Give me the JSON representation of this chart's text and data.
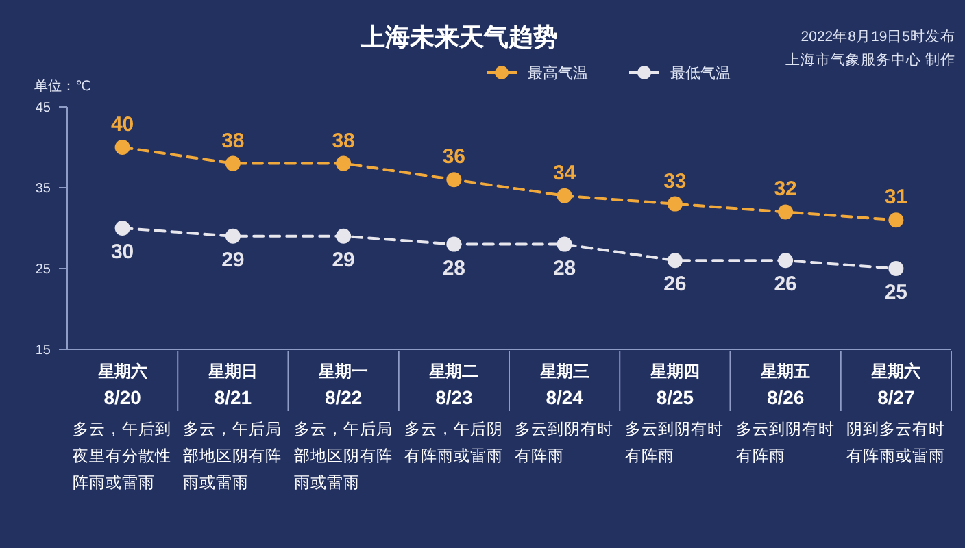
{
  "chart_data": {
    "type": "line",
    "title": "上海未来天气趋势",
    "ylabel": "单位：℃",
    "annotations": [
      "2022年8月19日5时发布",
      "上海市气象服务中心 制作",
      "多云，午后到夜里有分散性阵雨或雷雨",
      "多云，午后局部地区阴有阵雨或雷雨",
      "多云，午后局部地区阴有阵雨或雷雨",
      "多云，午后阴有阵雨或雷雨",
      "多云到阴有时有阵雨",
      "多云到阴有时有阵雨",
      "多云到阴有时有阵雨",
      "阴到多云有时有阵雨或雷雨"
    ],
    "categories": [
      "星期六\n8/20",
      "星期日\n8/21",
      "星期一\n8/22",
      "星期二\n8/23",
      "星期三\n8/24",
      "星期四\n8/25",
      "星期五\n8/26",
      "星期六\n8/27"
    ],
    "series": [
      {
        "name": "最高气温",
        "color": "#f2a93b",
        "values": [
          40,
          38,
          38,
          36,
          34,
          33,
          32,
          31
        ]
      },
      {
        "name": "最低气温",
        "color": "#e6e6ec",
        "values": [
          30,
          29,
          29,
          28,
          28,
          26,
          26,
          25
        ]
      }
    ],
    "ylim": [
      15,
      45
    ],
    "yticks": [
      15,
      25,
      35,
      45
    ],
    "legend": "top",
    "marker": "circle",
    "line_style": "dashed",
    "data_labels": true
  }
}
